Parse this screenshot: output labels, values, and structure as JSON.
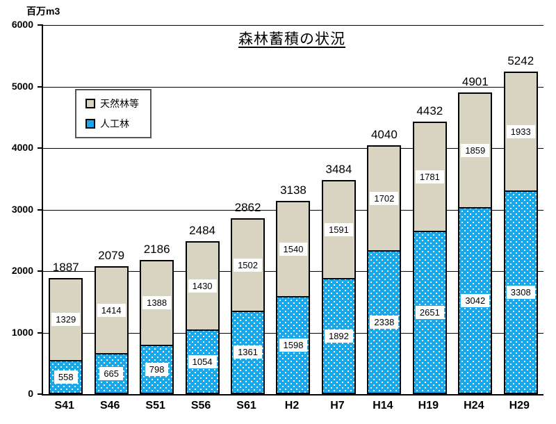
{
  "unit_label": "百万m3",
  "title": "森林蓄積の状況",
  "legend": {
    "items": [
      {
        "label": "天然林等",
        "color": "#d9d3c1",
        "pattern": "solid"
      },
      {
        "label": "人工林",
        "color": "#18a8ec",
        "pattern": "white-dots"
      }
    ]
  },
  "colors": {
    "planted_forest_blue": "#18a8ec",
    "natural_forest_tan": "#d9d3c1",
    "axis_black": "#000000",
    "background": "#ffffff"
  },
  "chart_data": {
    "type": "bar",
    "stacked": true,
    "title": "森林蓄積の状況",
    "unit": "百万m3",
    "xlabel": "",
    "ylabel": "百万m3",
    "categories": [
      "S41",
      "S46",
      "S51",
      "S56",
      "S61",
      "H2",
      "H7",
      "H14",
      "H19",
      "H24",
      "H29"
    ],
    "series": [
      {
        "name": "人工林",
        "color": "#18a8ec",
        "pattern": "white-dots",
        "values": [
          558,
          665,
          798,
          1054,
          1361,
          1598,
          1892,
          2338,
          2651,
          3042,
          3308
        ]
      },
      {
        "name": "天然林等",
        "color": "#d9d3c1",
        "pattern": "solid",
        "values": [
          1329,
          1414,
          1388,
          1430,
          1502,
          1540,
          1591,
          1702,
          1781,
          1859,
          1933
        ]
      }
    ],
    "totals": [
      1887,
      2079,
      2186,
      2484,
      2862,
      3138,
      3484,
      4040,
      4432,
      4901,
      5242
    ],
    "ylim": [
      0,
      6000
    ],
    "yticks": [
      0,
      1000,
      2000,
      3000,
      4000,
      5000,
      6000
    ],
    "grid": true,
    "legend_position": "upper-left-inside"
  }
}
